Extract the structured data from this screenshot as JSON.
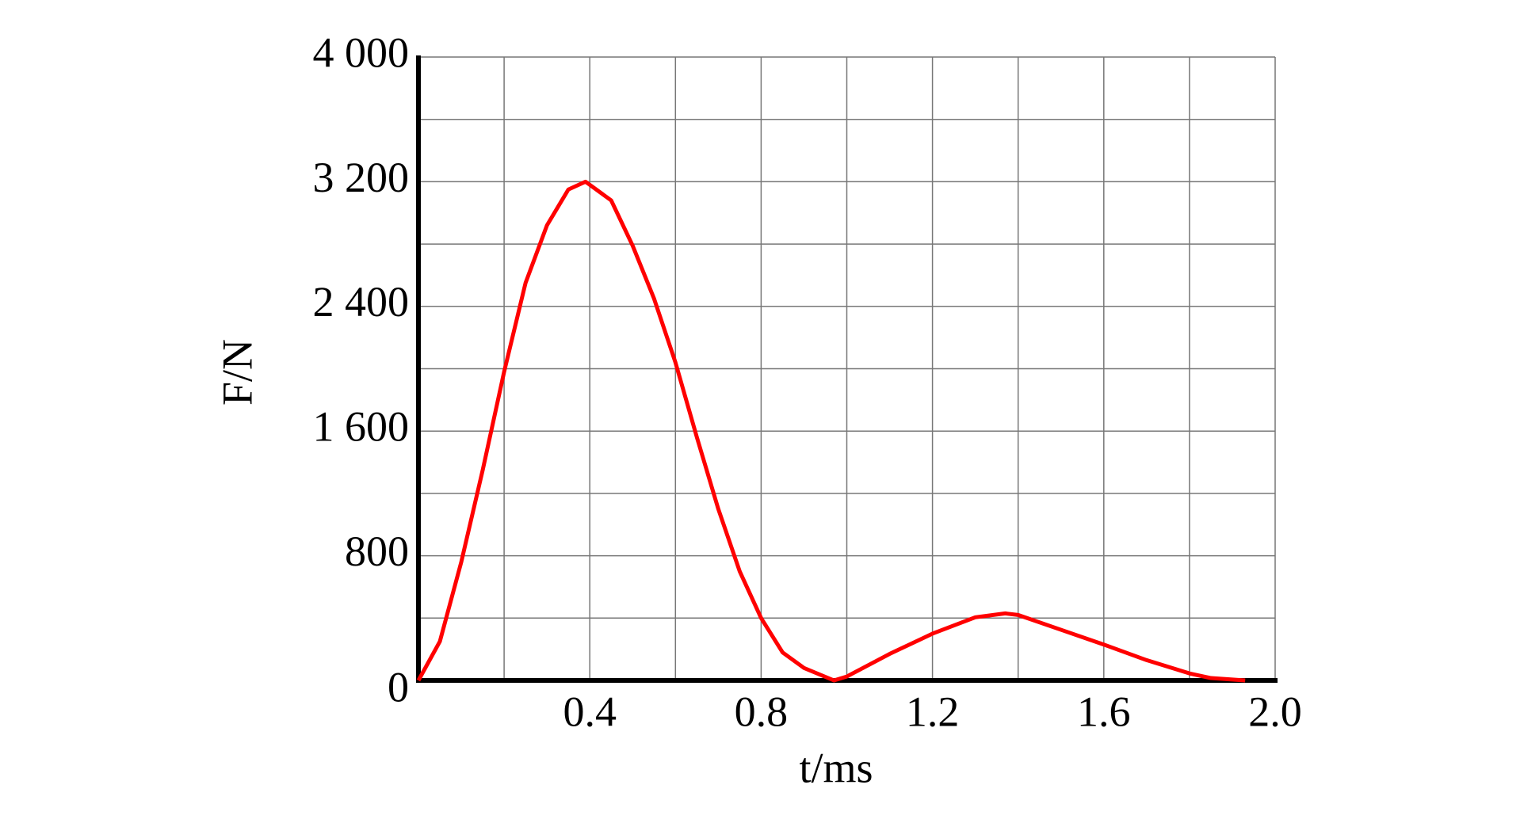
{
  "chart_data": {
    "type": "line",
    "x_label": "t/ms",
    "y_label": "F/N",
    "x": [
      0,
      0.05,
      0.1,
      0.15,
      0.2,
      0.25,
      0.3,
      0.35,
      0.39,
      0.45,
      0.5,
      0.55,
      0.6,
      0.65,
      0.7,
      0.75,
      0.8,
      0.85,
      0.9,
      0.97,
      1.0,
      1.1,
      1.2,
      1.3,
      1.37,
      1.4,
      1.5,
      1.6,
      1.7,
      1.8,
      1.85,
      1.93
    ],
    "series": [
      {
        "color": "#ff0000",
        "values": [
          0,
          250,
          760,
          1350,
          1980,
          2550,
          2920,
          3150,
          3200,
          3080,
          2790,
          2450,
          2040,
          1560,
          1100,
          700,
          400,
          180,
          80,
          0,
          25,
          170,
          300,
          405,
          430,
          420,
          325,
          230,
          130,
          45,
          15,
          0
        ]
      }
    ],
    "xlim": [
      0,
      2
    ],
    "ylim": [
      0,
      4000
    ],
    "xticks": [
      0.4,
      0.8,
      1.2,
      1.6,
      {
        "value": 2,
        "label": "2.0"
      }
    ],
    "yticks": [
      0,
      {
        "value": 800,
        "label": "800"
      },
      {
        "value": 1600,
        "label": "1 600"
      },
      {
        "value": 2400,
        "label": "2 400"
      },
      {
        "value": 3200,
        "label": "3 200"
      },
      {
        "value": 4000,
        "label": "4 000"
      }
    ],
    "xgrid": [
      0.2,
      0.4,
      0.6,
      0.8,
      1.0,
      1.2,
      1.4,
      1.6,
      1.8,
      2.0
    ],
    "ygrid": [
      400,
      800,
      1200,
      1600,
      2000,
      2400,
      2800,
      3200,
      3600,
      4000
    ],
    "grid": true
  }
}
